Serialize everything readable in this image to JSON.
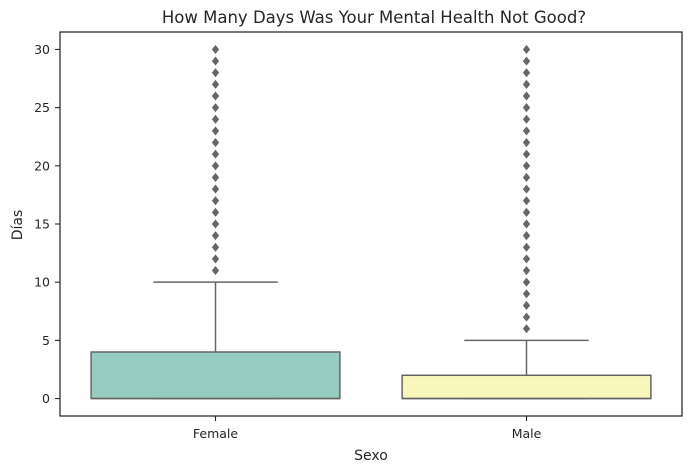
{
  "chart_data": {
    "type": "box",
    "title": "How Many Days Was Your Mental Health Not Good?",
    "xlabel": "Sexo",
    "ylabel": "Días",
    "ylim": [
      -1.5,
      31.5
    ],
    "yticks": [
      0,
      5,
      10,
      15,
      20,
      25,
      30
    ],
    "grid": false,
    "categories": [
      "Female",
      "Male"
    ],
    "boxes": [
      {
        "category": "Female",
        "min": 0,
        "q1": 0,
        "median": 0,
        "q3": 4,
        "max": 10,
        "outliers": [
          11,
          12,
          13,
          14,
          15,
          16,
          17,
          18,
          19,
          20,
          21,
          22,
          23,
          24,
          25,
          26,
          27,
          28,
          29,
          30
        ],
        "color": "#96cbbf"
      },
      {
        "category": "Male",
        "min": 0,
        "q1": 0,
        "median": 0,
        "q3": 2,
        "max": 5,
        "outliers": [
          6,
          7,
          8,
          9,
          10,
          11,
          12,
          13,
          14,
          15,
          16,
          17,
          18,
          19,
          20,
          21,
          22,
          23,
          24,
          25,
          26,
          27,
          28,
          29,
          30
        ],
        "color": "#f8f6bb"
      }
    ],
    "colors": {
      "line": "#666666",
      "outlier": "#666666",
      "axis": "#262626"
    }
  }
}
